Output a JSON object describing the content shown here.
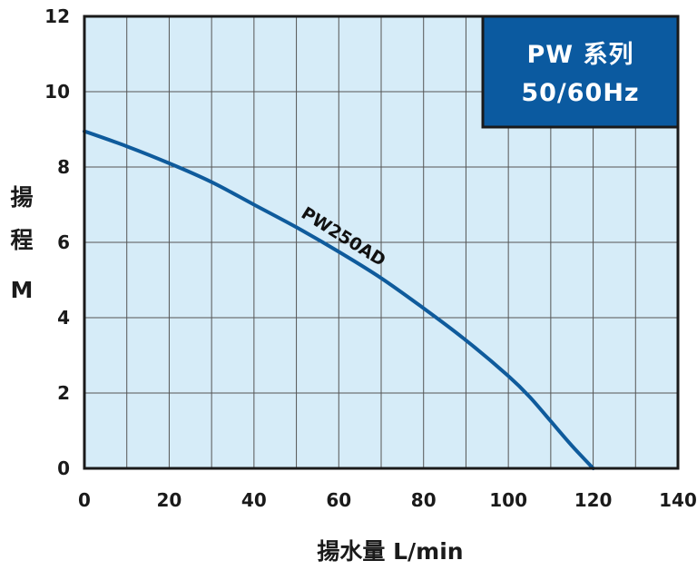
{
  "chart_data": {
    "type": "line",
    "xlabel": "揚水量 L/min",
    "ylabel_lines": [
      "揚",
      "程",
      "M"
    ],
    "xlim": [
      0,
      140
    ],
    "ylim": [
      0,
      12
    ],
    "xticks": [
      0,
      20,
      40,
      60,
      80,
      100,
      120,
      140
    ],
    "yticks": [
      0,
      2,
      4,
      6,
      8,
      10,
      12
    ],
    "grid": true,
    "badge": {
      "line1": "PW 系列",
      "line2": "50/60Hz",
      "color": "#0b5aa0",
      "position": "top-right"
    },
    "colors": {
      "plot_bg": "#d6ecf8",
      "grid": "#555555",
      "line": "#0f5b9c",
      "frame": "#1a1a1a"
    },
    "series": [
      {
        "name": "PW250AD",
        "x": [
          0,
          10,
          20,
          30,
          40,
          50,
          60,
          70,
          80,
          90,
          100,
          105,
          110,
          115,
          120
        ],
        "y": [
          8.95,
          8.55,
          8.1,
          7.6,
          7.0,
          6.4,
          5.75,
          5.05,
          4.25,
          3.4,
          2.45,
          1.9,
          1.25,
          0.6,
          0
        ]
      }
    ]
  }
}
